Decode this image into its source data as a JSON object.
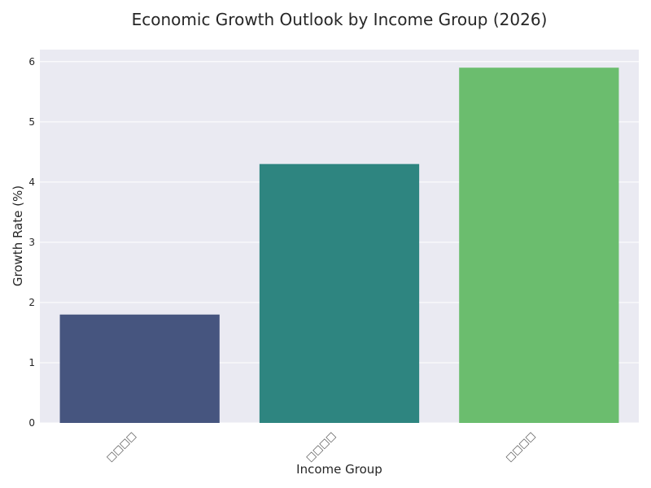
{
  "chart_data": {
    "type": "bar",
    "title": "Economic Growth Outlook by Income Group (2026)",
    "xlabel": "Income Group",
    "ylabel": "Growth Rate (%)",
    "categories": [
      "□□□□",
      "□□□□",
      "□□□□"
    ],
    "values": [
      1.8,
      4.3,
      5.9
    ],
    "ylim": [
      0,
      6.2
    ],
    "yticks": [
      "0",
      "1",
      "2",
      "3",
      "4",
      "5",
      "6"
    ],
    "grid": true,
    "legend": "none",
    "colors": [
      "#46557f",
      "#2e8580",
      "#6bbd6e"
    ],
    "plot_background": "#eaeaf2"
  }
}
